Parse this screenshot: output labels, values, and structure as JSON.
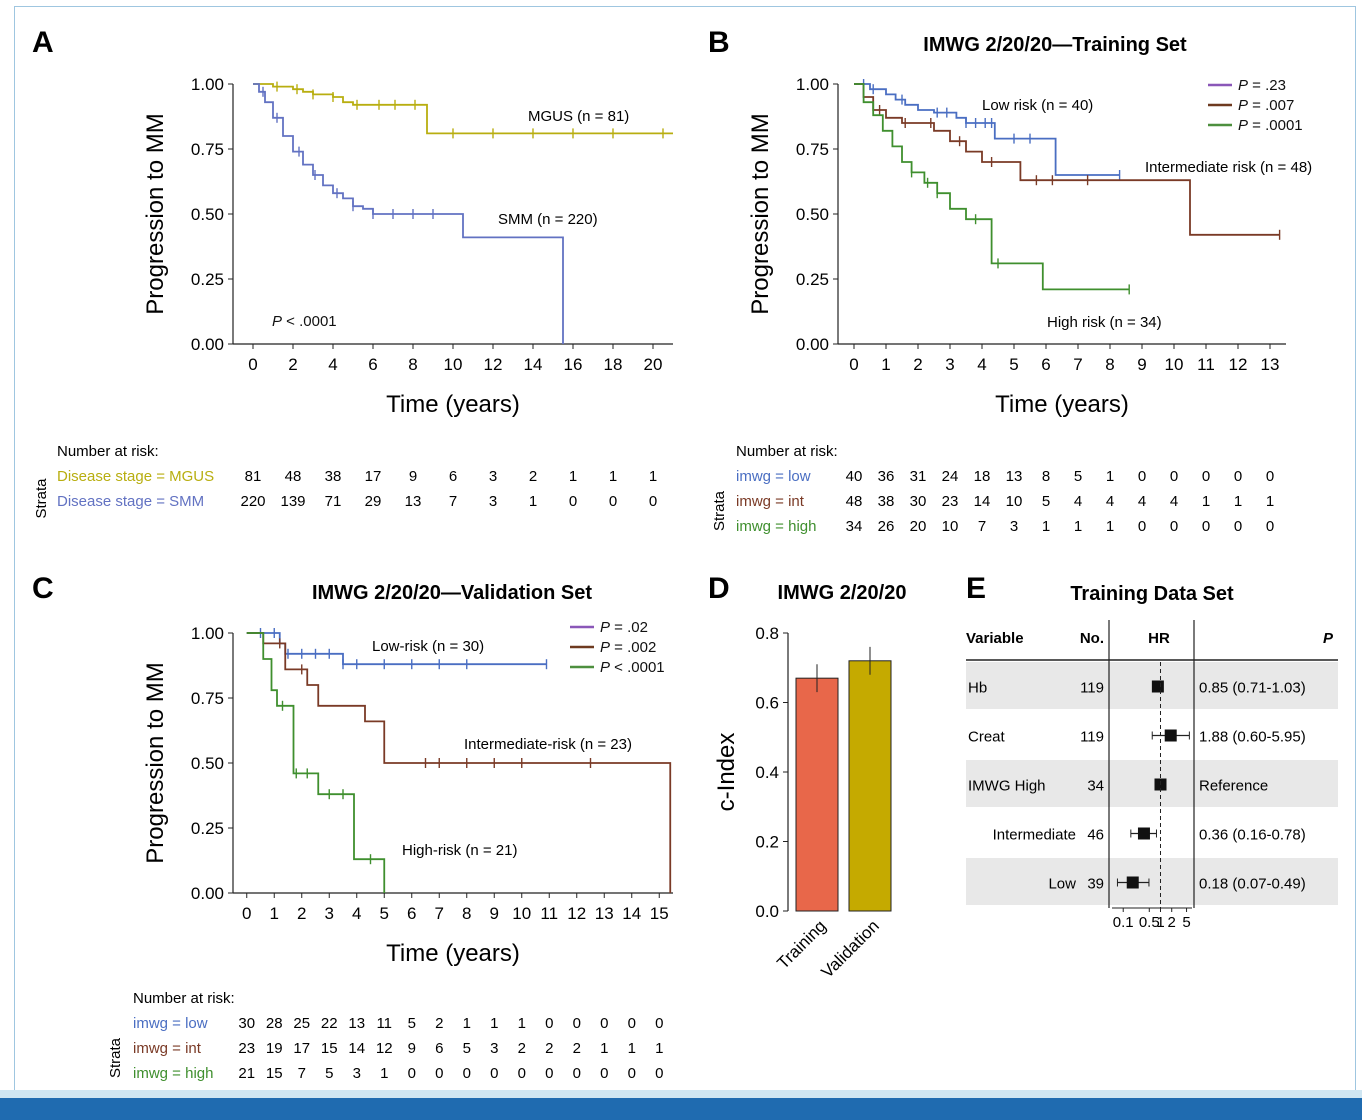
{
  "colors": {
    "mgus": "#b8ae10",
    "smm": "#6272c2",
    "low": "#4a6ec2",
    "int": "#7a3a26",
    "high": "#3f8f2e",
    "p_purple": "#8a57b8",
    "p_brown": "#6e3a20",
    "p_green": "#4d8f3e",
    "training_bar": "#e8674a",
    "validation_bar": "#c5aa00",
    "forest_band": "#e8e8e8"
  },
  "chart_data": [
    {
      "id": "A",
      "type": "line",
      "panel_letter": "A",
      "title": "",
      "xlabel": "Time (years)",
      "ylabel": "Progression to MM",
      "xlim": [
        -1,
        21
      ],
      "ylim": [
        0,
        1
      ],
      "xticks": [
        "0",
        "2",
        "4",
        "6",
        "8",
        "10",
        "12",
        "14",
        "16",
        "18",
        "20"
      ],
      "yticks": [
        "0.00",
        "0.25",
        "0.50",
        "0.75",
        "1.00"
      ],
      "annotation": "P < .0001",
      "series": [
        {
          "name": "MGUS (n = 81)",
          "color_key": "mgus",
          "x": [
            0,
            0.5,
            1,
            1.5,
            2,
            2.5,
            3,
            3.5,
            4,
            4.5,
            5,
            5.5,
            6,
            7,
            8,
            8.7,
            8.7,
            21
          ],
          "y": [
            1,
            1,
            0.99,
            0.99,
            0.98,
            0.97,
            0.96,
            0.96,
            0.95,
            0.93,
            0.92,
            0.92,
            0.92,
            0.92,
            0.92,
            0.92,
            0.81,
            0.81
          ],
          "censor": [
            1.2,
            2.2,
            3,
            4,
            5.2,
            6.3,
            7.1,
            8.1,
            10,
            12,
            14,
            16,
            18,
            20.5
          ]
        },
        {
          "name": "SMM (n = 220)",
          "color_key": "smm",
          "x": [
            0,
            0.3,
            0.6,
            1,
            1.5,
            2,
            2.5,
            3,
            3.5,
            4,
            4.5,
            5,
            5.5,
            6,
            7,
            8,
            9,
            10.5,
            10.5,
            15.5,
            15.5
          ],
          "y": [
            1,
            0.97,
            0.93,
            0.87,
            0.8,
            0.74,
            0.69,
            0.65,
            0.61,
            0.58,
            0.56,
            0.53,
            0.52,
            0.5,
            0.5,
            0.5,
            0.5,
            0.5,
            0.41,
            0.41,
            0
          ],
          "censor": [
            0.5,
            1.2,
            2.3,
            3.1,
            4.2,
            5,
            6,
            7,
            8,
            9
          ]
        }
      ],
      "risk_table": {
        "header": "Number at risk:",
        "strata_label": "Strata",
        "rows": [
          {
            "label": "Disease stage = MGUS",
            "color_key": "mgus",
            "values": [
              "81",
              "48",
              "38",
              "17",
              "9",
              "6",
              "3",
              "2",
              "1",
              "1",
              "1"
            ]
          },
          {
            "label": "Disease stage = SMM",
            "color_key": "smm",
            "values": [
              "220",
              "139",
              "71",
              "29",
              "13",
              "7",
              "3",
              "1",
              "0",
              "0",
              "0"
            ]
          }
        ]
      }
    },
    {
      "id": "B",
      "type": "line",
      "panel_letter": "B",
      "title": "IMWG 2/20/20—Training Set",
      "xlabel": "Time (years)",
      "ylabel": "Progression to MM",
      "xlim": [
        -0.5,
        13.5
      ],
      "ylim": [
        0,
        1
      ],
      "xticks": [
        "0",
        "1",
        "2",
        "3",
        "4",
        "5",
        "6",
        "7",
        "8",
        "9",
        "10",
        "11",
        "12",
        "13"
      ],
      "yticks": [
        "0.00",
        "0.25",
        "0.50",
        "0.75",
        "1.00"
      ],
      "legend": [
        {
          "p": "P = .23",
          "color_key": "p_purple"
        },
        {
          "p": "P = .007",
          "color_key": "p_brown"
        },
        {
          "p": "P = .0001",
          "color_key": "p_green"
        }
      ],
      "series": [
        {
          "name": "Low risk (n = 40)",
          "color_key": "low",
          "x": [
            0,
            0.5,
            1,
            1.3,
            1.6,
            2,
            2.5,
            3,
            3.2,
            3.5,
            4,
            4.4,
            4.4,
            6.3,
            6.3,
            8.3
          ],
          "y": [
            1,
            0.98,
            0.96,
            0.94,
            0.92,
            0.9,
            0.89,
            0.89,
            0.87,
            0.85,
            0.85,
            0.85,
            0.79,
            0.79,
            0.65,
            0.65
          ],
          "censor": [
            0.3,
            0.6,
            1.5,
            2.6,
            2.9,
            3.5,
            3.8,
            4.1,
            4.3,
            5,
            5.5,
            8.3
          ]
        },
        {
          "name": "Intermediate risk (n = 48)",
          "color_key": "int",
          "x": [
            0,
            0.3,
            0.6,
            1,
            1.5,
            2,
            2.5,
            3,
            3.5,
            4,
            5,
            5.2,
            5.2,
            10.5,
            10.5,
            13.3
          ],
          "y": [
            1,
            0.95,
            0.9,
            0.87,
            0.85,
            0.85,
            0.82,
            0.78,
            0.74,
            0.7,
            0.7,
            0.7,
            0.63,
            0.63,
            0.42,
            0.42
          ],
          "censor": [
            0.8,
            1.6,
            2.4,
            3.3,
            4.3,
            5.7,
            6.2,
            7.3,
            13.3
          ]
        },
        {
          "name": "High risk (n = 34)",
          "color_key": "high",
          "x": [
            0,
            0.3,
            0.6,
            0.9,
            1.2,
            1.5,
            1.8,
            2.2,
            2.6,
            3,
            3.5,
            4,
            4.3,
            4.3,
            5.9,
            5.9,
            8.6
          ],
          "y": [
            1,
            0.93,
            0.88,
            0.82,
            0.76,
            0.7,
            0.66,
            0.62,
            0.58,
            0.52,
            0.48,
            0.48,
            0.41,
            0.31,
            0.31,
            0.21,
            0.21
          ],
          "censor": [
            1.8,
            2.3,
            2.6,
            3.8,
            4.5,
            8.6
          ]
        }
      ],
      "labels": {
        "low": "Low risk (n = 40)",
        "int": "Intermediate risk (n = 48)",
        "high": "High risk (n = 34)"
      },
      "risk_table": {
        "header": "Number at risk:",
        "strata_label": "Strata",
        "rows": [
          {
            "label": "imwg = low",
            "color_key": "low",
            "values": [
              "40",
              "36",
              "31",
              "24",
              "18",
              "13",
              "8",
              "5",
              "1",
              "0",
              "0",
              "0",
              "0",
              "0"
            ]
          },
          {
            "label": "imwg = int",
            "color_key": "int",
            "values": [
              "48",
              "38",
              "30",
              "23",
              "14",
              "10",
              "5",
              "4",
              "4",
              "4",
              "4",
              "1",
              "1",
              "1"
            ]
          },
          {
            "label": "imwg = high",
            "color_key": "high",
            "values": [
              "34",
              "26",
              "20",
              "10",
              "7",
              "3",
              "1",
              "1",
              "1",
              "0",
              "0",
              "0",
              "0",
              "0"
            ]
          }
        ]
      }
    },
    {
      "id": "C",
      "type": "line",
      "panel_letter": "C",
      "title": "IMWG 2/20/20—Validation Set",
      "xlabel": "Time (years)",
      "ylabel": "Progression to MM",
      "xlim": [
        -0.5,
        15.5
      ],
      "ylim": [
        0,
        1
      ],
      "xticks": [
        "0",
        "1",
        "2",
        "3",
        "4",
        "5",
        "6",
        "7",
        "8",
        "9",
        "10",
        "11",
        "12",
        "13",
        "14",
        "15"
      ],
      "yticks": [
        "0.00",
        "0.25",
        "0.50",
        "0.75",
        "1.00"
      ],
      "legend": [
        {
          "p": "P = .02",
          "color_key": "p_purple"
        },
        {
          "p": "P = .002",
          "color_key": "p_brown"
        },
        {
          "p": "P < .0001",
          "color_key": "p_green"
        }
      ],
      "series": [
        {
          "name": "Low-risk (n = 30)",
          "color_key": "low",
          "x": [
            0,
            1.2,
            1.2,
            1.4,
            1.4,
            3.5,
            3.5,
            10.9
          ],
          "y": [
            1,
            1,
            0.96,
            0.96,
            0.92,
            0.92,
            0.88,
            0.88
          ],
          "censor": [
            0.5,
            1,
            1.5,
            2,
            2.5,
            3,
            3.5,
            4,
            5,
            6,
            7,
            8,
            10.9
          ]
        },
        {
          "name": "Intermediate-risk (n = 23)",
          "color_key": "int",
          "x": [
            0,
            0.6,
            0.6,
            1.4,
            1.4,
            2.2,
            2.2,
            2.6,
            2.6,
            4.3,
            4.3,
            5,
            5,
            15.4,
            15.4
          ],
          "y": [
            1,
            1,
            0.96,
            0.96,
            0.86,
            0.86,
            0.8,
            0.8,
            0.72,
            0.72,
            0.66,
            0.66,
            0.5,
            0.5,
            0
          ],
          "censor": [
            1.2,
            2,
            6.5,
            7,
            8,
            9,
            10,
            12.5
          ]
        },
        {
          "name": "High-risk (n = 21)",
          "color_key": "high",
          "x": [
            0,
            0.6,
            0.6,
            0.9,
            0.9,
            1.1,
            1.1,
            1.7,
            1.7,
            2.6,
            2.6,
            3.9,
            3.9,
            5,
            5
          ],
          "y": [
            1,
            1,
            0.9,
            0.9,
            0.78,
            0.78,
            0.72,
            0.72,
            0.46,
            0.46,
            0.38,
            0.38,
            0.13,
            0.13,
            0
          ],
          "censor": [
            1.3,
            1.8,
            2.2,
            3,
            3.5,
            4.5
          ]
        }
      ],
      "labels": {
        "low": "Low-risk (n = 30)",
        "int": "Intermediate-risk (n = 23)",
        "high": "High-risk (n = 21)"
      },
      "risk_table": {
        "header": "Number at risk:",
        "strata_label": "Strata",
        "rows": [
          {
            "label": "imwg = low",
            "color_key": "low",
            "values": [
              "30",
              "28",
              "25",
              "22",
              "13",
              "11",
              "5",
              "2",
              "1",
              "1",
              "1",
              "0",
              "0",
              "0",
              "0",
              "0"
            ]
          },
          {
            "label": "imwg = int",
            "color_key": "int",
            "values": [
              "23",
              "19",
              "17",
              "15",
              "14",
              "12",
              "9",
              "6",
              "5",
              "3",
              "2",
              "2",
              "2",
              "1",
              "1",
              "1"
            ]
          },
          {
            "label": "imwg = high",
            "color_key": "high",
            "values": [
              "21",
              "15",
              "7",
              "5",
              "3",
              "1",
              "0",
              "0",
              "0",
              "0",
              "0",
              "0",
              "0",
              "0",
              "0",
              "0"
            ]
          }
        ]
      }
    },
    {
      "id": "D",
      "type": "bar",
      "panel_letter": "D",
      "title": "IMWG 2/20/20",
      "ylabel": "c-Index",
      "ylim": [
        0,
        0.8
      ],
      "yticks": [
        "0.0",
        "0.2",
        "0.4",
        "0.6",
        "0.8"
      ],
      "categories": [
        "Training",
        "Validation"
      ],
      "values": [
        0.67,
        0.72
      ],
      "error": [
        [
          0.63,
          0.71
        ],
        [
          0.68,
          0.76
        ]
      ]
    },
    {
      "id": "E",
      "type": "table",
      "panel_letter": "E",
      "title": "Training Data Set",
      "columns": {
        "variable": "Variable",
        "no": "No.",
        "hr": "HR",
        "p": "P"
      },
      "rows": [
        {
          "variable": "Hb",
          "no": "119",
          "hr": 0.85,
          "lo": 0.71,
          "hi": 1.03,
          "text": "0.85 (0.71-1.03)",
          "band": true
        },
        {
          "variable": "Creat",
          "no": "119",
          "hr": 1.88,
          "lo": 0.6,
          "hi": 5.95,
          "text": "1.88 (0.60-5.95)",
          "band": false
        },
        {
          "variable": "IMWG  High",
          "no": "34",
          "hr": 1.0,
          "lo": 1.0,
          "hi": 1.0,
          "text": "Reference",
          "band": true
        },
        {
          "variable": "Intermediate",
          "no": "46",
          "hr": 0.36,
          "lo": 0.16,
          "hi": 0.78,
          "text": "0.36 (0.16-0.78)",
          "band": false
        },
        {
          "variable": "Low",
          "no": "39",
          "hr": 0.18,
          "lo": 0.07,
          "hi": 0.49,
          "text": "0.18 (0.07-0.49)",
          "band": true
        }
      ],
      "xticks": [
        "0.1",
        "0.5",
        "1",
        "2",
        "5"
      ],
      "xtick_values": [
        0.1,
        0.5,
        1,
        2,
        5
      ]
    }
  ]
}
